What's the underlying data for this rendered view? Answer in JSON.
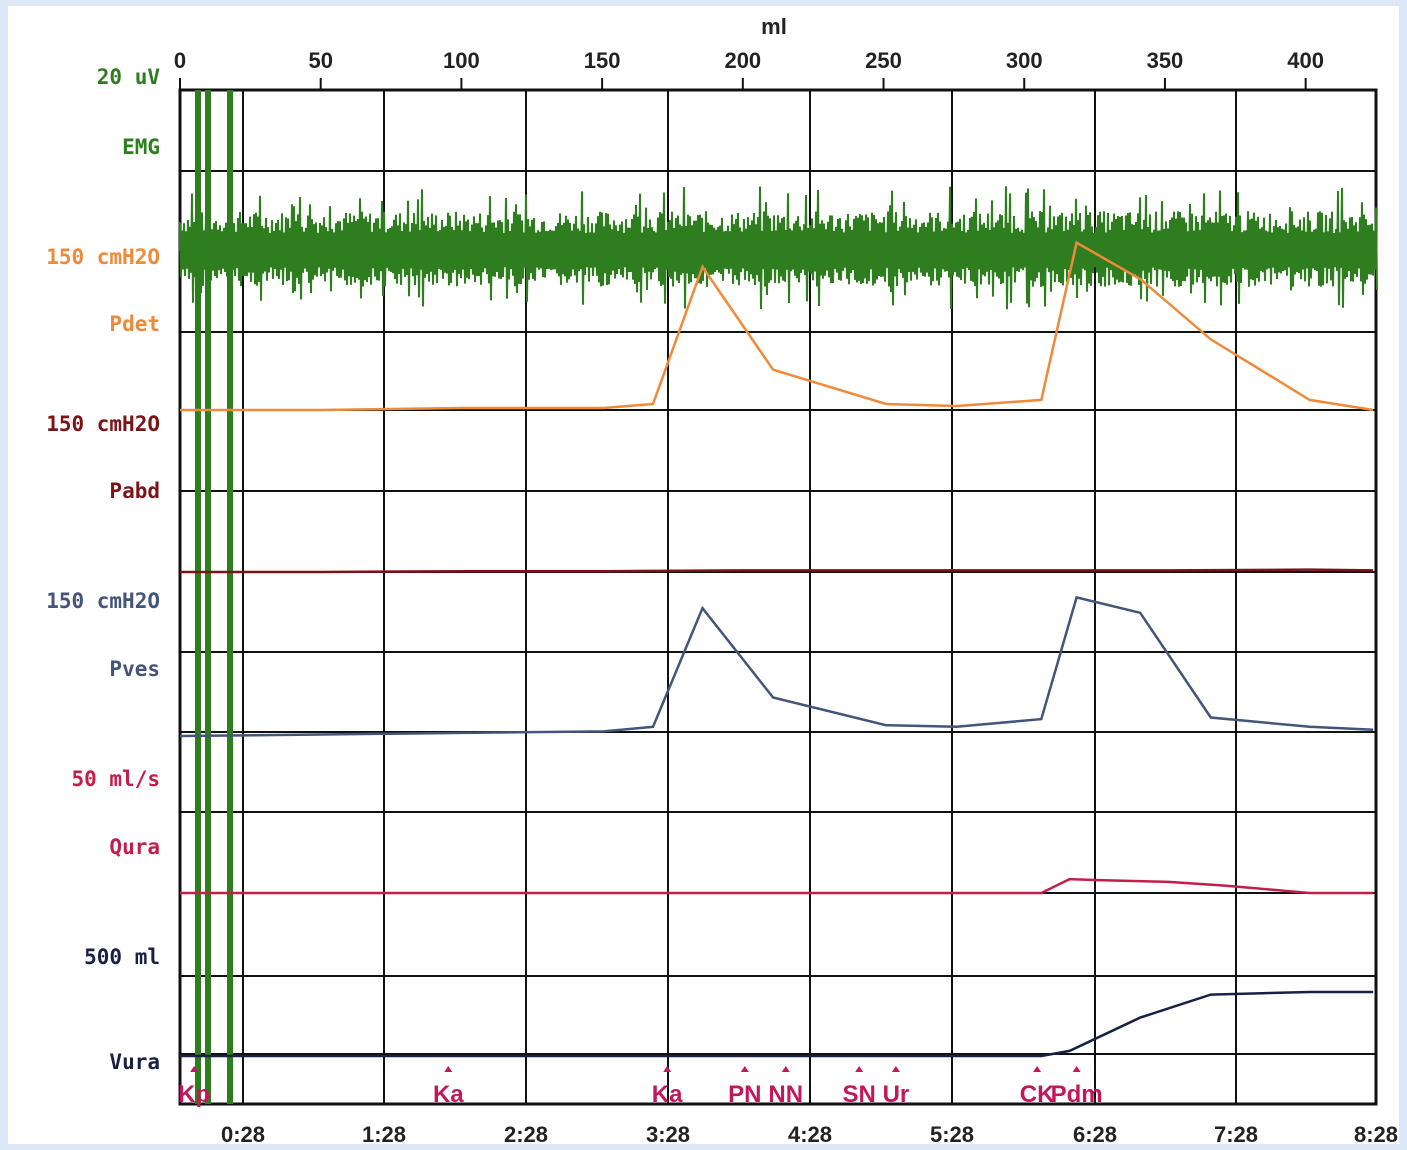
{
  "chart_data": {
    "type": "line",
    "top_axis": {
      "unit": "ml",
      "ticks": [
        "0",
        "50",
        "100",
        "150",
        "200",
        "250",
        "300",
        "350",
        "400"
      ],
      "range": [
        0,
        425
      ]
    },
    "bottom_axis": {
      "ticks": [
        "0:28",
        "1:28",
        "2:28",
        "3:28",
        "4:28",
        "5:28",
        "6:28",
        "7:28",
        "8:28"
      ],
      "range_minutes": [
        0,
        8.47
      ]
    },
    "channels": [
      {
        "key": "emg",
        "scale": "20 uV",
        "name": "EMG",
        "color": "#2e7d1e"
      },
      {
        "key": "pdet",
        "scale": "150 cmH2O",
        "name": "Pdet",
        "color": "#ef8a3a"
      },
      {
        "key": "pabd",
        "scale": "150 cmH2O",
        "name": "Pabd",
        "color": "#7a1418"
      },
      {
        "key": "pves",
        "scale": "150 cmH2O",
        "name": "Pves",
        "color": "#44557a"
      },
      {
        "key": "qura",
        "scale": "50 ml/s",
        "name": "Qura",
        "color": "#c21e4a"
      },
      {
        "key": "vura",
        "scale": "500 ml",
        "name": "Vura",
        "color": "#1a2044"
      }
    ],
    "series": [
      {
        "name": "Pdet",
        "unit": "cmH2O",
        "x_minutes": [
          0,
          1,
          2,
          3,
          3.35,
          3.7,
          4.2,
          5,
          5.5,
          6.1,
          6.35,
          6.8,
          7.3,
          8,
          8.45
        ],
        "values": [
          0,
          0,
          1,
          1,
          3,
          71,
          20,
          3,
          2,
          5,
          83,
          65,
          35,
          5,
          0
        ]
      },
      {
        "name": "Pabd",
        "unit": "cmH2O",
        "x_minutes": [
          0,
          1,
          2,
          3,
          4,
          5,
          6,
          7,
          8,
          8.45
        ],
        "values": [
          0,
          0,
          1,
          1,
          2,
          2,
          2,
          2,
          3,
          2
        ]
      },
      {
        "name": "Pves",
        "unit": "cmH2O",
        "x_minutes": [
          0,
          1,
          2,
          3,
          3.35,
          3.7,
          4.2,
          5,
          5.5,
          6.1,
          6.35,
          6.8,
          7.3,
          8,
          8.45
        ],
        "values": [
          0,
          1,
          2,
          3,
          6,
          83,
          25,
          7,
          6,
          11,
          90,
          80,
          12,
          6,
          4
        ]
      },
      {
        "name": "Qura",
        "unit": "ml/s",
        "x_minutes": [
          0,
          6.1,
          6.3,
          6.5,
          7,
          7.4,
          8,
          8.45
        ],
        "values": [
          0,
          0,
          1.5,
          1.4,
          1.2,
          0.8,
          0,
          0
        ]
      },
      {
        "name": "Vura",
        "unit": "ml",
        "x_minutes": [
          0,
          3.5,
          6.1,
          6.3,
          6.8,
          7.3,
          8,
          8.45
        ],
        "values": [
          0,
          0,
          0,
          20,
          150,
          240,
          250,
          250
        ]
      }
    ],
    "grid": true
  },
  "events": [
    {
      "label": "Kp",
      "time_min": 0.1
    },
    {
      "label": "Ka",
      "time_min": 1.9
    },
    {
      "label": "Ka",
      "time_min": 3.45
    },
    {
      "label": "PN",
      "time_min": 4.0
    },
    {
      "label": "NN",
      "time_min": 4.29
    },
    {
      "label": "SN",
      "time_min": 4.81
    },
    {
      "label": "Ur",
      "time_min": 5.07
    },
    {
      "label": "CK",
      "time_min": 6.07
    },
    {
      "label": "Pdm",
      "time_min": 6.35
    }
  ]
}
